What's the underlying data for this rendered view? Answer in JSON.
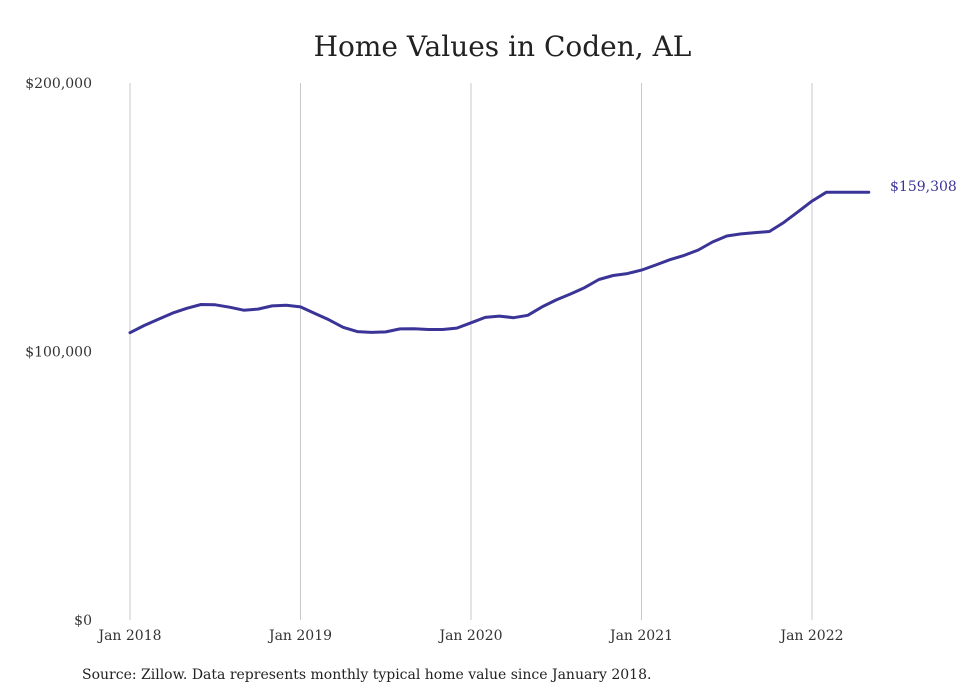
{
  "chart_data": {
    "type": "line",
    "title": "Home Values in Coden, AL",
    "xlabel": "",
    "ylabel": "",
    "y_ticks": [
      "$0",
      "$100,000",
      "$200,000"
    ],
    "y_tick_values": [
      0,
      100000,
      200000
    ],
    "ylim": [
      0,
      200000
    ],
    "x_ticks": [
      "Jan 2018",
      "Jan 2019",
      "Jan 2020",
      "Jan 2021",
      "Jan 2022"
    ],
    "x_tick_dates": [
      "2018-01",
      "2019-01",
      "2020-01",
      "2021-01",
      "2022-01"
    ],
    "grid": "vertical",
    "line_color": "#3b3497",
    "series": [
      {
        "x": [
          "2018-01",
          "2018-02",
          "2018-03",
          "2018-04",
          "2018-05",
          "2018-06",
          "2018-07",
          "2018-08",
          "2018-09",
          "2018-10",
          "2018-11",
          "2018-12",
          "2019-01",
          "2019-02",
          "2019-03",
          "2019-04",
          "2019-05",
          "2019-06",
          "2019-07",
          "2019-08",
          "2019-09",
          "2019-10",
          "2019-11",
          "2019-12",
          "2020-01",
          "2020-02",
          "2020-03",
          "2020-04",
          "2020-05",
          "2020-06",
          "2020-07",
          "2020-08",
          "2020-09",
          "2020-10",
          "2020-11",
          "2020-12",
          "2021-01",
          "2021-02",
          "2021-03",
          "2021-04",
          "2021-05",
          "2021-06",
          "2021-07",
          "2021-08",
          "2021-09",
          "2021-10",
          "2021-11",
          "2021-12",
          "2022-01",
          "2022-02",
          "2022-03",
          "2022-04",
          "2022-05"
        ],
        "values": [
          107000,
          109700,
          112000,
          114300,
          116100,
          117500,
          117400,
          116500,
          115400,
          115800,
          117000,
          117200,
          116600,
          114200,
          111800,
          109000,
          107400,
          107100,
          107300,
          108400,
          108500,
          108200,
          108200,
          108700,
          110700,
          112700,
          113200,
          112600,
          113500,
          116600,
          119200,
          121400,
          123800,
          126800,
          128300,
          129000,
          130300,
          132200,
          134200,
          135800,
          137800,
          140800,
          143000,
          143800,
          144300,
          144700,
          148000,
          152000,
          156000,
          159308,
          159308,
          159308,
          159308
        ],
        "end_label": "$159,308"
      }
    ],
    "source_note": "Source: Zillow. Data represents monthly typical home value since January 2018."
  }
}
